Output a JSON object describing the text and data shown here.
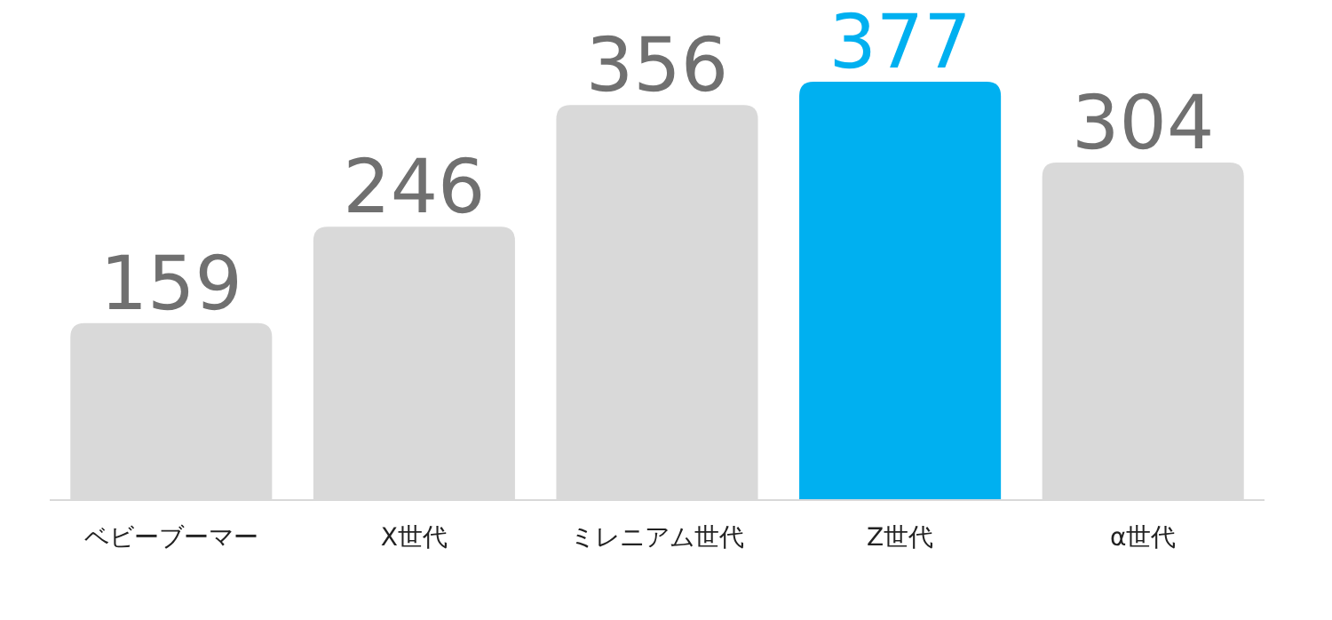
{
  "chart_data": {
    "type": "bar",
    "categories": [
      "ベビーブーマー",
      "X世代",
      "ミレニアム世代",
      "Z世代",
      "α世代"
    ],
    "values": [
      159,
      246,
      356,
      377,
      304
    ],
    "colors": [
      "#d9d9d9",
      "#d9d9d9",
      "#d9d9d9",
      "#00b0f0",
      "#d9d9d9"
    ],
    "data_labels": true
  }
}
